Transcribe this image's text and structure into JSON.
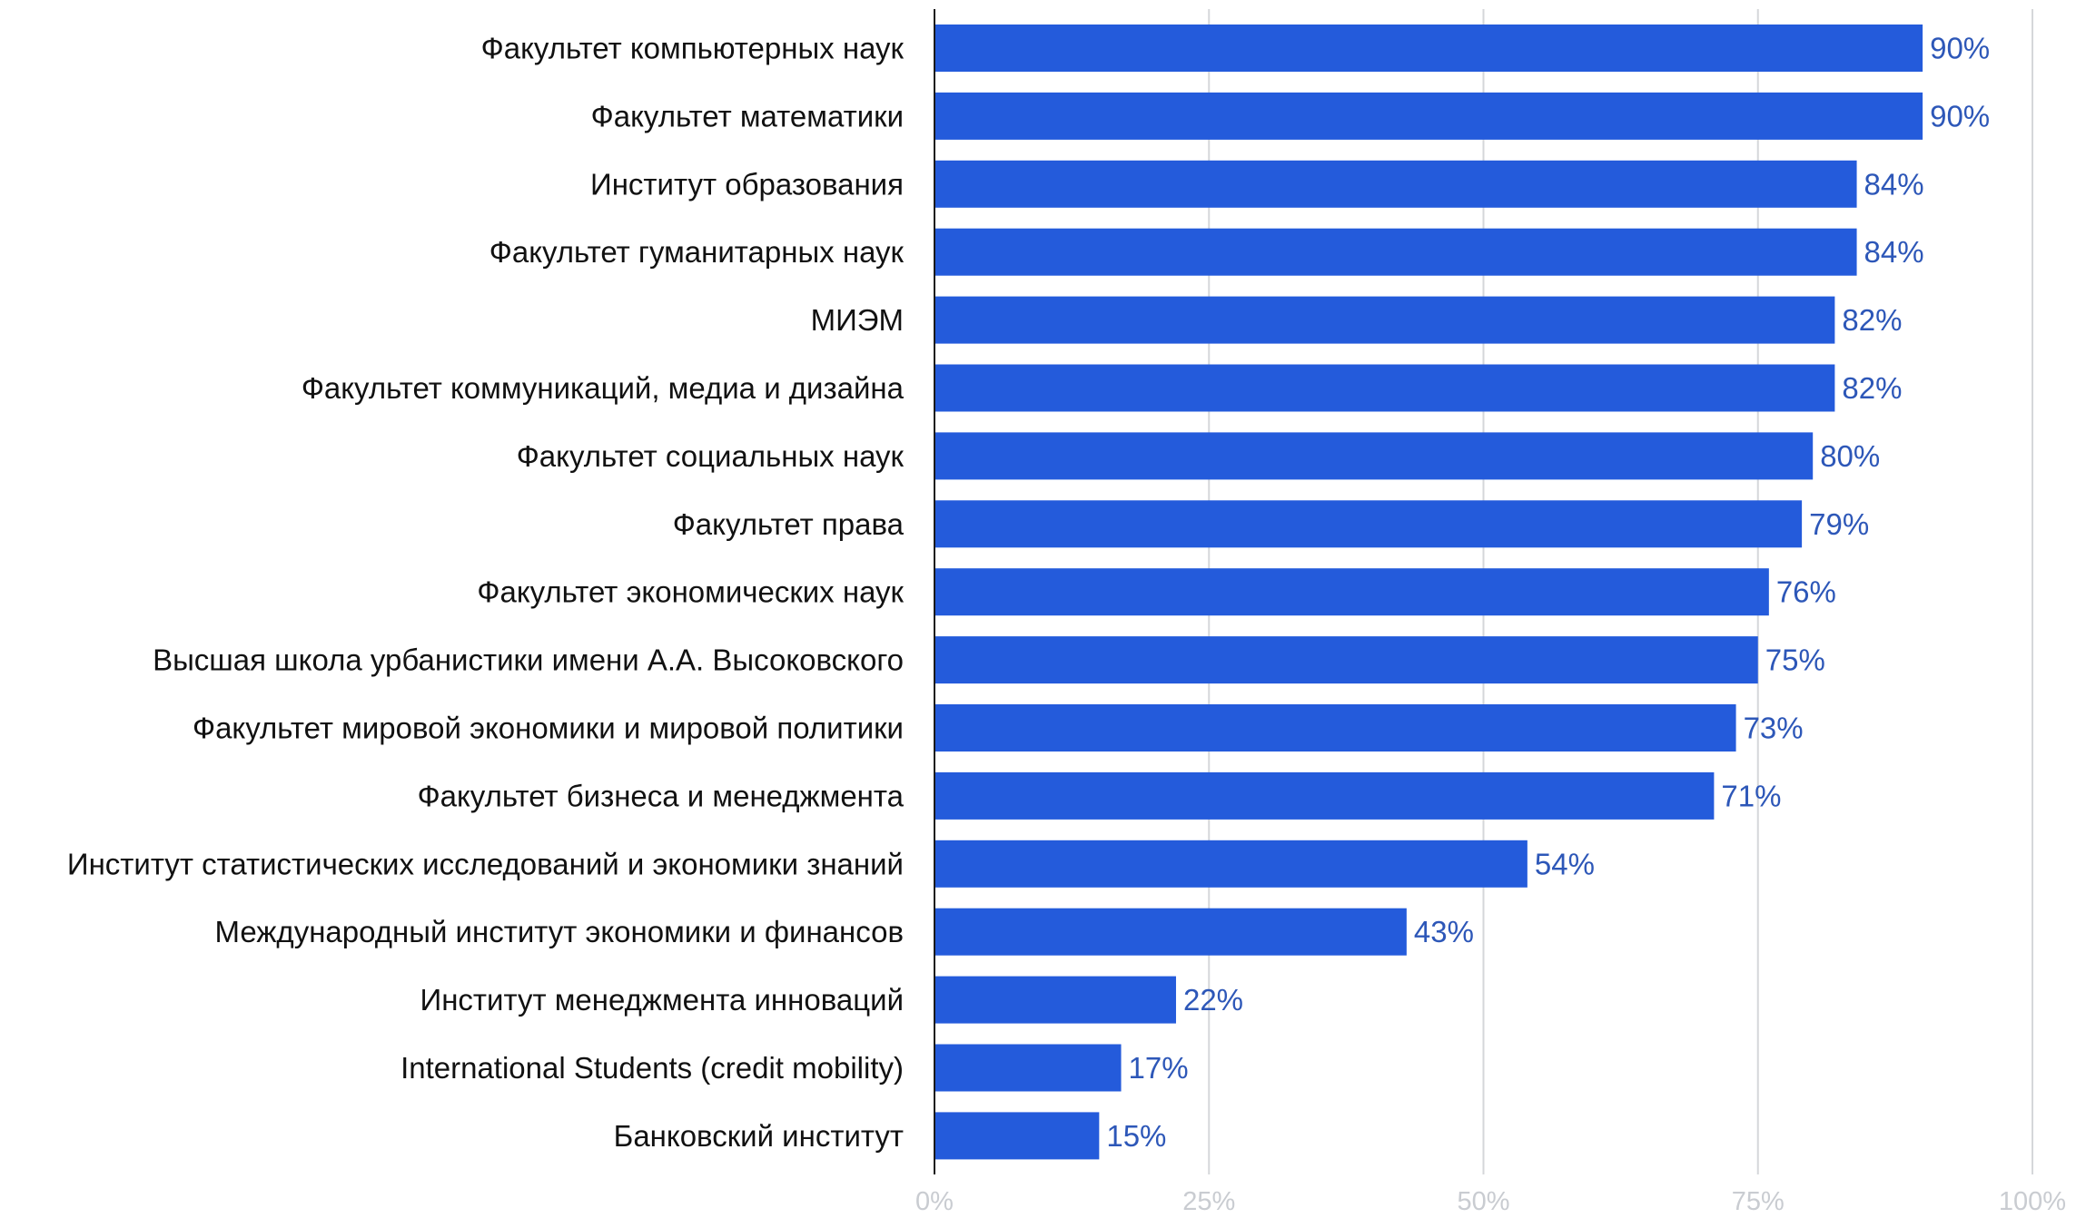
{
  "chart_data": {
    "type": "bar",
    "orientation": "horizontal",
    "categories": [
      "Факультет компьютерных наук",
      "Факультет математики",
      "Институт образования",
      "Факультет гуманитарных наук",
      "МИЭМ",
      "Факультет коммуникаций, медиа и дизайна",
      "Факультет социальных наук",
      "Факультет права",
      "Факультет экономических наук",
      "Высшая школа урбанистики имени А.А. Высоковского",
      "Факультет мировой экономики и мировой политики",
      "Факультет бизнеса и менеджмента",
      "Институт статистических исследований и экономики знаний",
      "Международный институт экономики и финансов",
      "Институт менеджмента инноваций",
      "International Students (credit mobility)",
      "Банковский институт"
    ],
    "values": [
      90,
      90,
      84,
      84,
      82,
      82,
      80,
      79,
      76,
      75,
      73,
      71,
      54,
      43,
      22,
      17,
      15
    ],
    "value_labels": [
      "90%",
      "90%",
      "84%",
      "84%",
      "82%",
      "82%",
      "80%",
      "79%",
      "76%",
      "75%",
      "73%",
      "71%",
      "54%",
      "43%",
      "22%",
      "17%",
      "15%"
    ],
    "xlim": [
      0,
      100
    ],
    "x_ticks": [
      0,
      25,
      50,
      75,
      100
    ],
    "x_tick_labels": [
      "0%",
      "25%",
      "50%",
      "75%",
      "100%"
    ],
    "title": "",
    "xlabel": "",
    "ylabel": "",
    "grid": true,
    "legend": "none",
    "colors": {
      "bar": "#245BDB",
      "value_label": "#2D57B8",
      "category_label": "#111111",
      "tick_label": "#C9CCD1",
      "gridline": "#D5D7DA",
      "axis": "#1A1A1A"
    }
  }
}
